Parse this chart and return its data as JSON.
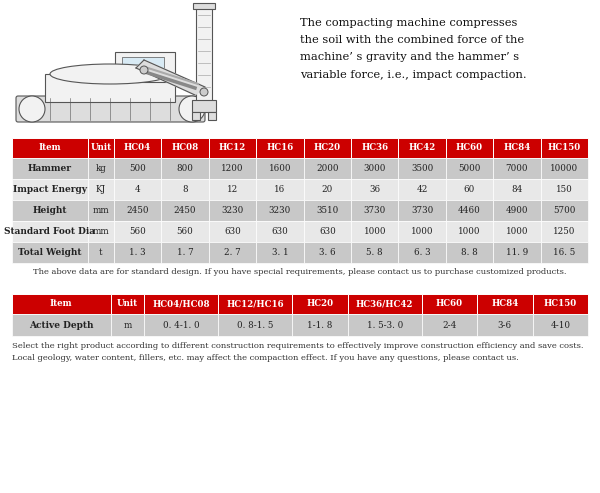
{
  "bg_color": "#ffffff",
  "header_bg": "#cc0000",
  "header_fg": "#ffffff",
  "row_bg_odd": "#c8c8c8",
  "row_bg_even": "#e8e8e8",
  "text_color": "#222222",
  "border_color": "#ffffff",
  "description_text": "The compacting machine compresses\nthe soil with the combined force of the\nmachine’ s gravity and the hammer’ s\nvariable force, i.e., impact compaction.",
  "table1_headers": [
    "Item",
    "Unit",
    "HC04",
    "HC08",
    "HC12",
    "HC16",
    "HC20",
    "HC36",
    "HC42",
    "HC60",
    "HC84",
    "HC150"
  ],
  "table1_rows": [
    [
      "Hammer",
      "kg",
      "500",
      "800",
      "1200",
      "1600",
      "2000",
      "3000",
      "3500",
      "5000",
      "7000",
      "10000"
    ],
    [
      "Impact Energy",
      "KJ",
      "4",
      "8",
      "12",
      "16",
      "20",
      "36",
      "42",
      "60",
      "84",
      "150"
    ],
    [
      "Height",
      "mm",
      "2450",
      "2450",
      "3230",
      "3230",
      "3510",
      "3730",
      "3730",
      "4460",
      "4900",
      "5700"
    ],
    [
      "Standard Foot Dia",
      "mm",
      "560",
      "560",
      "630",
      "630",
      "630",
      "1000",
      "1000",
      "1000",
      "1000",
      "1250"
    ],
    [
      "Total Weight",
      "t",
      "1. 3",
      "1. 7",
      "2. 7",
      "3. 1",
      "3. 6",
      "5. 8",
      "6. 3",
      "8. 8",
      "11. 9",
      "16. 5"
    ]
  ],
  "table1_col_weights": [
    1.6,
    0.55,
    1.0,
    1.0,
    1.0,
    1.0,
    1.0,
    1.0,
    1.0,
    1.0,
    1.0,
    1.0
  ],
  "note1": "The above data are for standard design. If you have special requirements, please contact us to purchase customized products.",
  "table2_headers": [
    "Item",
    "Unit",
    "HC04/HC08",
    "HC12/HC16",
    "HC20",
    "HC36/HC42",
    "HC60",
    "HC84",
    "HC150"
  ],
  "table2_rows": [
    [
      "Active Depth",
      "m",
      "0. 4-1. 0",
      "0. 8-1. 5",
      "1-1. 8",
      "1. 5-3. 0",
      "2-4",
      "3-6",
      "4-10"
    ]
  ],
  "table2_col_weights": [
    1.6,
    0.55,
    1.2,
    1.2,
    0.9,
    1.2,
    0.9,
    0.9,
    0.9
  ],
  "note2": "Select the right product according to different construction requirements to effectively improve construction efficiency and save costs.\nLocal geology, water content, fillers, etc. may affect the compaction effect. If you have any questions, please contact us."
}
